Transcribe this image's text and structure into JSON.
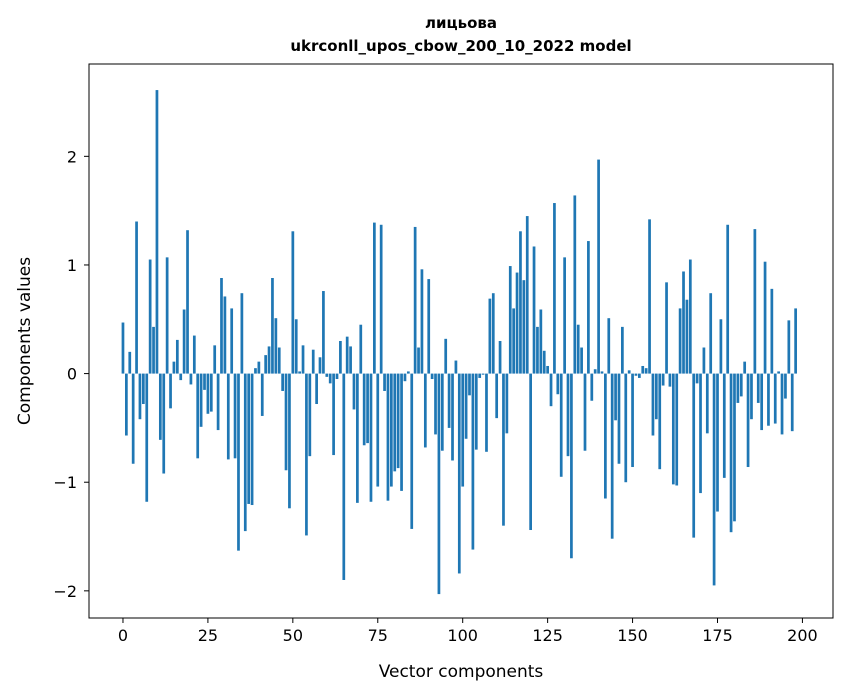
{
  "chart_data": {
    "type": "bar",
    "title": "лицьова",
    "subtitle": "ukrconll_upos_cbow_200_10_2022 model",
    "xlabel": "Vector components",
    "ylabel": "Components values",
    "xlim": [
      -10,
      209
    ],
    "ylim": [
      -2.25,
      2.85
    ],
    "xticks": [
      0,
      25,
      50,
      75,
      100,
      125,
      150,
      175,
      200
    ],
    "yticks": [
      -2,
      -1,
      0,
      1,
      2
    ],
    "ytick_labels": [
      "−2",
      "−1",
      "0",
      "1",
      "2"
    ],
    "grid": false,
    "legend": "none",
    "bar_color": "#1f77b4",
    "values": [
      0.47,
      -0.57,
      0.2,
      -0.83,
      1.4,
      -0.42,
      -0.28,
      -1.18,
      1.05,
      0.43,
      2.61,
      -0.61,
      -0.92,
      1.07,
      -0.32,
      0.11,
      0.31,
      -0.06,
      0.59,
      1.32,
      -0.1,
      0.35,
      -0.78,
      -0.49,
      -0.15,
      -0.37,
      -0.35,
      0.26,
      -0.52,
      0.88,
      0.71,
      -0.79,
      0.6,
      -0.78,
      -1.63,
      0.74,
      -1.45,
      -1.2,
      -1.21,
      0.05,
      0.11,
      -0.39,
      0.17,
      0.25,
      0.88,
      0.51,
      0.24,
      -0.16,
      -0.89,
      -1.24,
      1.31,
      0.5,
      0.02,
      0.26,
      -1.49,
      -0.76,
      0.22,
      -0.28,
      0.15,
      0.76,
      -0.03,
      -0.09,
      -0.75,
      -0.05,
      0.3,
      -1.9,
      0.34,
      0.25,
      -0.33,
      -1.19,
      0.45,
      -0.66,
      -0.64,
      -1.18,
      1.39,
      -1.04,
      1.37,
      -0.16,
      -1.17,
      -1.04,
      -0.9,
      -0.87,
      -1.08,
      -0.07,
      0.02,
      -1.43,
      1.35,
      0.24,
      0.96,
      -0.68,
      0.87,
      -0.05,
      -0.56,
      -2.03,
      -0.71,
      0.32,
      -0.5,
      -0.8,
      0.12,
      -1.84,
      -1.04,
      -0.6,
      -0.2,
      -1.62,
      -0.7,
      -0.04,
      -0.01,
      -0.72,
      0.69,
      0.74,
      -0.41,
      0.3,
      -1.4,
      -0.55,
      0.99,
      0.6,
      0.93,
      1.31,
      0.86,
      1.45,
      -1.44,
      1.17,
      0.43,
      0.59,
      0.21,
      0.07,
      -0.3,
      1.57,
      -0.19,
      -0.95,
      1.07,
      -0.76,
      -1.7,
      1.64,
      0.45,
      0.24,
      -0.71,
      1.22,
      -0.25,
      0.04,
      1.97,
      0.02,
      -1.15,
      0.51,
      -1.52,
      -0.43,
      -0.83,
      0.43,
      -1.0,
      0.03,
      -0.86,
      -0.02,
      -0.04,
      0.07,
      0.05,
      1.42,
      -0.57,
      -0.42,
      -0.88,
      -0.11,
      0.84,
      -0.12,
      -1.02,
      -1.03,
      0.6,
      0.94,
      0.68,
      1.05,
      -1.51,
      -0.09,
      -1.1,
      0.24,
      -0.55,
      0.74,
      -1.95,
      -1.27,
      0.5,
      -0.96,
      1.37,
      -1.46,
      -1.36,
      -0.27,
      -0.21,
      0.11,
      -0.86,
      -0.42,
      1.33,
      -0.27,
      -0.52,
      1.03,
      -0.48,
      0.78,
      -0.46,
      0.02,
      -0.56,
      -0.23,
      0.49,
      -0.53,
      0.6
    ]
  }
}
